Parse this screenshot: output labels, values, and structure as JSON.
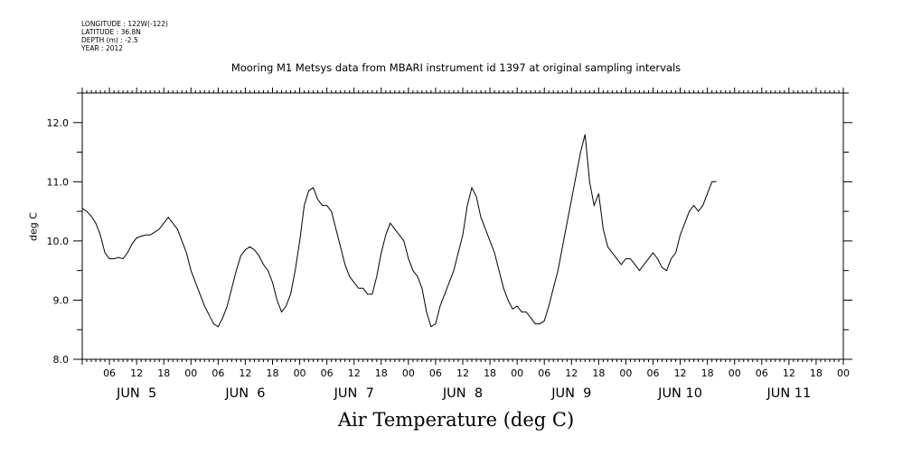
{
  "header": {
    "longitude": "LONGITUDE : 122W(-122)",
    "latitude": "LATITUDE : 36.8N",
    "depth": "DEPTH (m) : -2.5",
    "year": "YEAR : 2012"
  },
  "chart_data": {
    "type": "line",
    "title": "Mooring M1 Metsys data from MBARI instrument id 1397 at original sampling intervals",
    "xlabel": "Air Temperature (deg C)",
    "ylabel": "deg C",
    "ylim": [
      8.0,
      12.5
    ],
    "xlim_hours": [
      0,
      168
    ],
    "yticks": [
      "8.0",
      "9.0",
      "10.0",
      "11.0",
      "12.0"
    ],
    "ytick_values": [
      8.0,
      9.0,
      10.0,
      11.0,
      12.0
    ],
    "hour_ticks": [
      "06",
      "12",
      "18",
      "00",
      "06",
      "12",
      "18",
      "00",
      "06",
      "12",
      "18",
      "00",
      "06",
      "12",
      "18",
      "00",
      "06",
      "12",
      "18",
      "00",
      "06",
      "12",
      "18",
      "00",
      "06",
      "12",
      "18",
      "00"
    ],
    "day_labels": [
      "JUN  5",
      "JUN  6",
      "JUN  7",
      "JUN  8",
      "JUN  9",
      "JUN 10",
      "JUN 11"
    ],
    "series": [
      {
        "values": [
          [
            0,
            10.55
          ],
          [
            1,
            10.5
          ],
          [
            2,
            10.42
          ],
          [
            3,
            10.3
          ],
          [
            4,
            10.1
          ],
          [
            5,
            9.8
          ],
          [
            6,
            9.7
          ],
          [
            7,
            9.7
          ],
          [
            8,
            9.72
          ],
          [
            9,
            9.7
          ],
          [
            10,
            9.8
          ],
          [
            11,
            9.95
          ],
          [
            12,
            10.05
          ],
          [
            13,
            10.08
          ],
          [
            14,
            10.1
          ],
          [
            15,
            10.1
          ],
          [
            16,
            10.15
          ],
          [
            17,
            10.2
          ],
          [
            18,
            10.3
          ],
          [
            19,
            10.4
          ],
          [
            20,
            10.3
          ],
          [
            21,
            10.2
          ],
          [
            22,
            10.0
          ],
          [
            23,
            9.8
          ],
          [
            24,
            9.5
          ],
          [
            25,
            9.3
          ],
          [
            26,
            9.1
          ],
          [
            27,
            8.9
          ],
          [
            28,
            8.75
          ],
          [
            29,
            8.6
          ],
          [
            30,
            8.55
          ],
          [
            31,
            8.7
          ],
          [
            32,
            8.9
          ],
          [
            33,
            9.2
          ],
          [
            34,
            9.5
          ],
          [
            35,
            9.75
          ],
          [
            36,
            9.85
          ],
          [
            37,
            9.9
          ],
          [
            38,
            9.85
          ],
          [
            39,
            9.75
          ],
          [
            40,
            9.6
          ],
          [
            41,
            9.5
          ],
          [
            42,
            9.3
          ],
          [
            43,
            9.0
          ],
          [
            44,
            8.8
          ],
          [
            45,
            8.9
          ],
          [
            46,
            9.1
          ],
          [
            47,
            9.5
          ],
          [
            48,
            10.0
          ],
          [
            49,
            10.6
          ],
          [
            50,
            10.85
          ],
          [
            51,
            10.9
          ],
          [
            52,
            10.7
          ],
          [
            53,
            10.6
          ],
          [
            54,
            10.6
          ],
          [
            55,
            10.5
          ],
          [
            56,
            10.2
          ],
          [
            57,
            9.9
          ],
          [
            58,
            9.6
          ],
          [
            59,
            9.4
          ],
          [
            60,
            9.3
          ],
          [
            61,
            9.2
          ],
          [
            62,
            9.2
          ],
          [
            63,
            9.1
          ],
          [
            64,
            9.1
          ],
          [
            65,
            9.4
          ],
          [
            66,
            9.8
          ],
          [
            67,
            10.1
          ],
          [
            68,
            10.3
          ],
          [
            69,
            10.2
          ],
          [
            70,
            10.1
          ],
          [
            71,
            10.0
          ],
          [
            72,
            9.7
          ],
          [
            73,
            9.5
          ],
          [
            74,
            9.4
          ],
          [
            75,
            9.2
          ],
          [
            76,
            8.8
          ],
          [
            77,
            8.55
          ],
          [
            78,
            8.6
          ],
          [
            79,
            8.9
          ],
          [
            80,
            9.1
          ],
          [
            81,
            9.3
          ],
          [
            82,
            9.5
          ],
          [
            83,
            9.8
          ],
          [
            84,
            10.1
          ],
          [
            85,
            10.6
          ],
          [
            86,
            10.9
          ],
          [
            87,
            10.75
          ],
          [
            88,
            10.4
          ],
          [
            89,
            10.2
          ],
          [
            90,
            10.0
          ],
          [
            91,
            9.8
          ],
          [
            92,
            9.5
          ],
          [
            93,
            9.2
          ],
          [
            94,
            9.0
          ],
          [
            95,
            8.85
          ],
          [
            96,
            8.9
          ],
          [
            97,
            8.8
          ],
          [
            98,
            8.8
          ],
          [
            99,
            8.7
          ],
          [
            100,
            8.6
          ],
          [
            101,
            8.6
          ],
          [
            102,
            8.65
          ],
          [
            103,
            8.9
          ],
          [
            104,
            9.2
          ],
          [
            105,
            9.5
          ],
          [
            106,
            9.9
          ],
          [
            107,
            10.3
          ],
          [
            108,
            10.7
          ],
          [
            109,
            11.1
          ],
          [
            110,
            11.5
          ],
          [
            111,
            11.8
          ],
          [
            112,
            11.0
          ],
          [
            113,
            10.6
          ],
          [
            114,
            10.8
          ],
          [
            115,
            10.2
          ],
          [
            116,
            9.9
          ],
          [
            117,
            9.8
          ],
          [
            118,
            9.7
          ],
          [
            119,
            9.6
          ],
          [
            120,
            9.7
          ],
          [
            121,
            9.7
          ],
          [
            122,
            9.6
          ],
          [
            123,
            9.5
          ],
          [
            124,
            9.6
          ],
          [
            125,
            9.7
          ],
          [
            126,
            9.8
          ],
          [
            127,
            9.7
          ],
          [
            128,
            9.55
          ],
          [
            129,
            9.5
          ],
          [
            130,
            9.7
          ],
          [
            131,
            9.8
          ],
          [
            132,
            10.1
          ],
          [
            133,
            10.3
          ],
          [
            134,
            10.5
          ],
          [
            135,
            10.6
          ],
          [
            136,
            10.5
          ],
          [
            137,
            10.6
          ],
          [
            138,
            10.8
          ],
          [
            139,
            11.0
          ],
          [
            140,
            11.0
          ]
        ]
      }
    ]
  }
}
